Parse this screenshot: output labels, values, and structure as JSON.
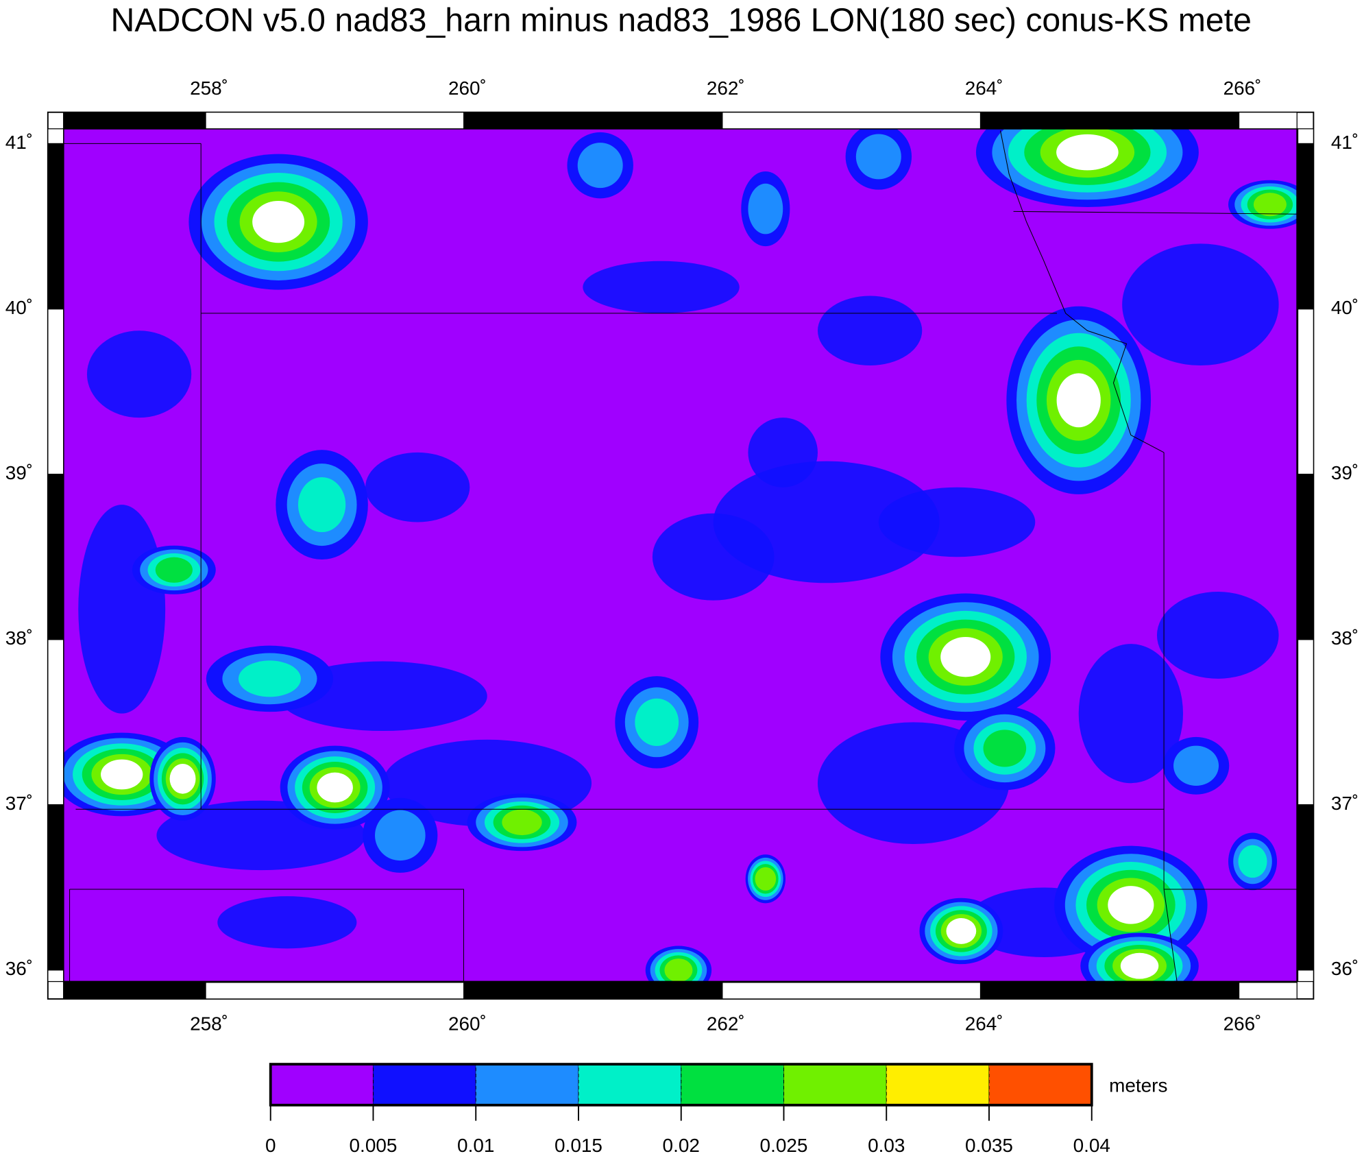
{
  "title": "NADCON v5.0 nad83_harn minus nad83_1986 LON(180 sec) conus-KS mete",
  "map": {
    "xlim": [
      256.9,
      266.45
    ],
    "ylim": [
      35.93,
      41.09
    ],
    "xticks": [
      {
        "value": 258,
        "label": "258˚"
      },
      {
        "value": 260,
        "label": "260˚"
      },
      {
        "value": 262,
        "label": "262˚"
      },
      {
        "value": 264,
        "label": "264˚"
      },
      {
        "value": 266,
        "label": "266˚"
      }
    ],
    "yticks": [
      {
        "value": 36,
        "label": "36˚"
      },
      {
        "value": 37,
        "label": "37˚"
      },
      {
        "value": 38,
        "label": "38˚"
      },
      {
        "value": 39,
        "label": "39˚"
      },
      {
        "value": 40,
        "label": "40˚"
      },
      {
        "value": 41,
        "label": "41˚"
      }
    ],
    "colorbar": {
      "label": "meters",
      "bounds": [
        0,
        0.005,
        0.01,
        0.015,
        0.02,
        0.025,
        0.03,
        0.035,
        0.04
      ],
      "colors": [
        "#a000ff",
        "#1010ff",
        "#1e8cff",
        "#00f0c8",
        "#00e040",
        "#70f000",
        "#ffee00",
        "#ff5000"
      ]
    }
  }
}
